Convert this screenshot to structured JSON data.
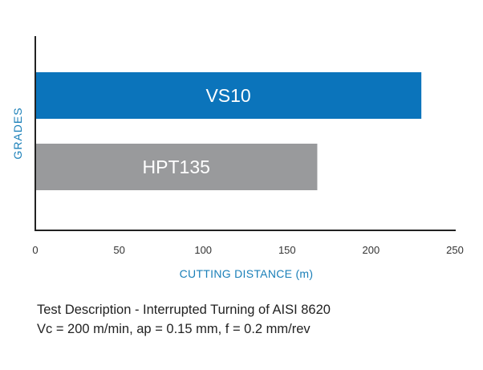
{
  "chart_data": {
    "type": "bar",
    "orientation": "horizontal",
    "categories": [
      "VS10",
      "HPT135"
    ],
    "values": [
      230,
      168
    ],
    "colors": [
      "#0b74bb",
      "#999a9c"
    ],
    "xlabel": "CUTTING DISTANCE (m)",
    "ylabel": "GRADES",
    "xlim": [
      0,
      250
    ],
    "xticks": [
      0,
      50,
      100,
      150,
      200,
      250
    ],
    "grid": false,
    "label_placement": "inside-bar",
    "accent_color": "#1a7fb8"
  },
  "description": {
    "line1": "Test Description - Interrupted Turning of AISI 8620",
    "line2": "Vc = 200 m/min, ap = 0.15 mm, f = 0.2 mm/rev"
  }
}
